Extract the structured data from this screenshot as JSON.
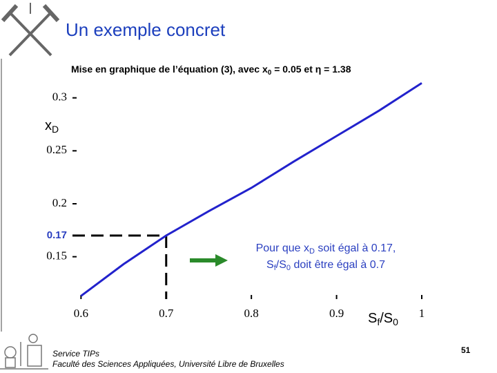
{
  "chart_data": {
    "type": "line",
    "title": "Un exemple concret",
    "subtitle": [
      "Mise en graphique de l’équation (3), avec x",
      "0",
      " = 0.05 et η = 1.38"
    ],
    "y_label": [
      "x",
      "D"
    ],
    "x_label": [
      "S",
      "f",
      "/S",
      "0"
    ],
    "x": [
      0.6,
      0.65,
      0.7,
      0.75,
      0.8,
      0.85,
      0.9,
      0.95,
      1.0
    ],
    "values": [
      0.113,
      0.143,
      0.17,
      0.193,
      0.215,
      0.24,
      0.264,
      0.288,
      0.314
    ],
    "color": "#2222cc",
    "xlim": [
      0.59,
      1.0
    ],
    "ylim": [
      0.11,
      0.32
    ],
    "xticks": [
      0.6,
      0.7,
      0.8,
      0.9,
      1
    ],
    "yticks": [
      0.15,
      0.2,
      0.25,
      0.3
    ],
    "highlight": {
      "x": 0.7,
      "y": 0.17
    },
    "annotation": [
      [
        "Pour que x",
        "D",
        " soit égal à 0.17,"
      ],
      [
        "S",
        "f",
        "/S",
        "0",
        " doit être égal à 0.7"
      ]
    ],
    "footer": [
      "Service TIPs",
      "Faculté des Sciences Appliquées, Université Libre de Bruxelles"
    ],
    "page_number": 51
  }
}
